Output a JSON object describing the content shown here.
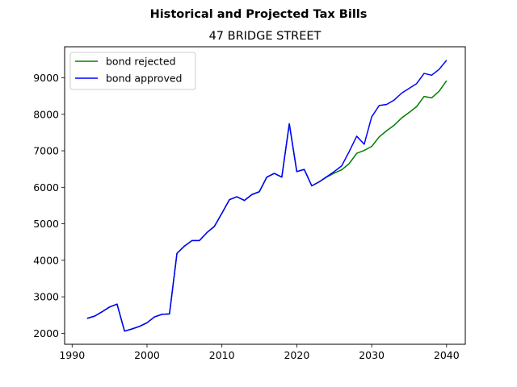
{
  "chart_data": {
    "type": "line",
    "suptitle": "Historical and Projected Tax Bills",
    "title": "47 BRIDGE STREET",
    "xlabel": "",
    "ylabel": "",
    "xlim": [
      1989,
      2042.5
    ],
    "ylim": [
      1700,
      9850
    ],
    "xticks": [
      1990,
      2000,
      2010,
      2020,
      2030,
      2040
    ],
    "yticks": [
      2000,
      3000,
      4000,
      5000,
      6000,
      7000,
      8000,
      9000
    ],
    "grid": false,
    "legend_position": "top-left",
    "series": [
      {
        "name": "bond rejected",
        "color": "#008000",
        "x": [
          1992,
          1993,
          1994,
          1995,
          1996,
          1997,
          1998,
          1999,
          2000,
          2001,
          2002,
          2003,
          2004,
          2005,
          2006,
          2007,
          2008,
          2009,
          2010,
          2011,
          2012,
          2013,
          2014,
          2015,
          2016,
          2017,
          2018,
          2019,
          2020,
          2021,
          2022,
          2023,
          2024,
          2025,
          2026,
          2027,
          2028,
          2029,
          2030,
          2031,
          2032,
          2033,
          2034,
          2035,
          2036,
          2037,
          2038,
          2039,
          2040
        ],
        "values": [
          2410,
          2470,
          2590,
          2720,
          2800,
          2060,
          2120,
          2190,
          2290,
          2450,
          2520,
          2530,
          4190,
          4390,
          4540,
          4540,
          4760,
          4930,
          5290,
          5660,
          5740,
          5640,
          5800,
          5880,
          6280,
          6380,
          6280,
          7740,
          6430,
          6490,
          6040,
          6150,
          6280,
          6390,
          6480,
          6650,
          6930,
          7010,
          7120,
          7380,
          7550,
          7700,
          7900,
          8050,
          8210,
          8490,
          8450,
          8630,
          8920
        ]
      },
      {
        "name": "bond approved",
        "color": "#0000ff",
        "x": [
          1992,
          1993,
          1994,
          1995,
          1996,
          1997,
          1998,
          1999,
          2000,
          2001,
          2002,
          2003,
          2004,
          2005,
          2006,
          2007,
          2008,
          2009,
          2010,
          2011,
          2012,
          2013,
          2014,
          2015,
          2016,
          2017,
          2018,
          2019,
          2020,
          2021,
          2022,
          2023,
          2024,
          2025,
          2026,
          2027,
          2028,
          2029,
          2030,
          2031,
          2032,
          2033,
          2034,
          2035,
          2036,
          2037,
          2038,
          2039,
          2040
        ],
        "values": [
          2410,
          2470,
          2590,
          2720,
          2800,
          2060,
          2120,
          2190,
          2290,
          2450,
          2520,
          2530,
          4190,
          4390,
          4540,
          4540,
          4760,
          4930,
          5290,
          5660,
          5740,
          5640,
          5800,
          5880,
          6280,
          6380,
          6280,
          7740,
          6430,
          6490,
          6040,
          6150,
          6290,
          6430,
          6590,
          6980,
          7400,
          7180,
          7930,
          8240,
          8270,
          8390,
          8580,
          8710,
          8840,
          9120,
          9070,
          9230,
          9480
        ]
      }
    ]
  }
}
